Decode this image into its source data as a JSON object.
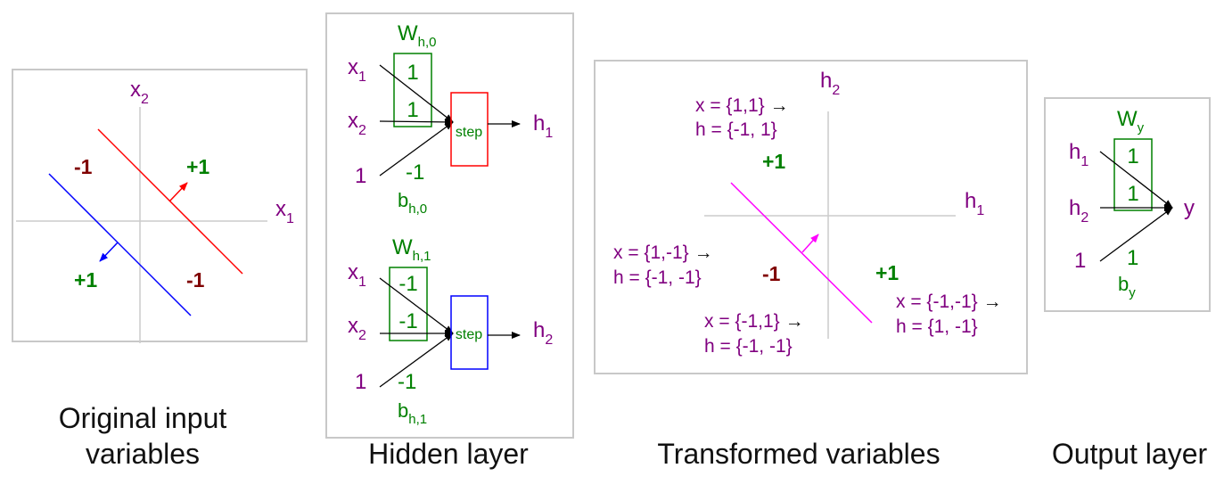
{
  "panels": {
    "original": {
      "caption_line1": "Original input",
      "caption_line2": "variables",
      "axis_x": "x",
      "axis_x_sub": "1",
      "axis_y": "x",
      "axis_y_sub": "2",
      "labels": {
        "left_top": "-1",
        "right_top": "+1",
        "left_bottom": "+1",
        "right_bottom": "-1"
      },
      "colors": {
        "line_a": "#ff0000",
        "line_b": "#0000ff",
        "axis": "#cccccc"
      }
    },
    "hidden": {
      "caption": "Hidden layer",
      "unit0": {
        "weight_label": "W",
        "weight_sub": "h,0",
        "weights": [
          "1",
          "1"
        ],
        "bias_input": "1",
        "bias_value": "-1",
        "bias_label": "b",
        "bias_sub": "h,0",
        "inputs": [
          {
            "base": "x",
            "sub": "1"
          },
          {
            "base": "x",
            "sub": "2"
          }
        ],
        "activation": "step",
        "output": "h",
        "output_sub": "1",
        "box_color": "#ff0000"
      },
      "unit1": {
        "weight_label": "W",
        "weight_sub": "h,1",
        "weights": [
          "-1",
          "-1"
        ],
        "bias_input": "1",
        "bias_value": "-1",
        "bias_label": "b",
        "bias_sub": "h,1",
        "inputs": [
          {
            "base": "x",
            "sub": "1"
          },
          {
            "base": "x",
            "sub": "2"
          }
        ],
        "activation": "step",
        "output": "h",
        "output_sub": "2",
        "box_color": "#0000ff"
      }
    },
    "transformed": {
      "caption": "Transformed variables",
      "axis_x": "h",
      "axis_x_sub": "1",
      "axis_y": "h",
      "axis_y_sub": "2",
      "label_plus_top": "+1",
      "label_minus": "-1",
      "label_plus_right": "+1",
      "arrow": "→",
      "mappings": {
        "a": {
          "x": "x = {1,1}",
          "h": "h = {-1, 1}"
        },
        "b": {
          "x": "x = {1,-1}",
          "h": "h = {-1, -1}"
        },
        "c": {
          "x": "x = {-1,1}",
          "h": "h = {-1, -1}"
        },
        "d": {
          "x": "x = {-1,-1}",
          "h": "h = {1, -1}"
        }
      },
      "colors": {
        "line": "#ff00ff"
      }
    },
    "output": {
      "caption": "Output layer",
      "weight_label": "W",
      "weight_sub": "y",
      "weights": [
        "1",
        "1"
      ],
      "inputs": [
        {
          "base": "h",
          "sub": "1"
        },
        {
          "base": "h",
          "sub": "2"
        }
      ],
      "bias_input": "1",
      "bias_value": "1",
      "bias_label": "b",
      "bias_sub": "y",
      "output": "y"
    }
  }
}
